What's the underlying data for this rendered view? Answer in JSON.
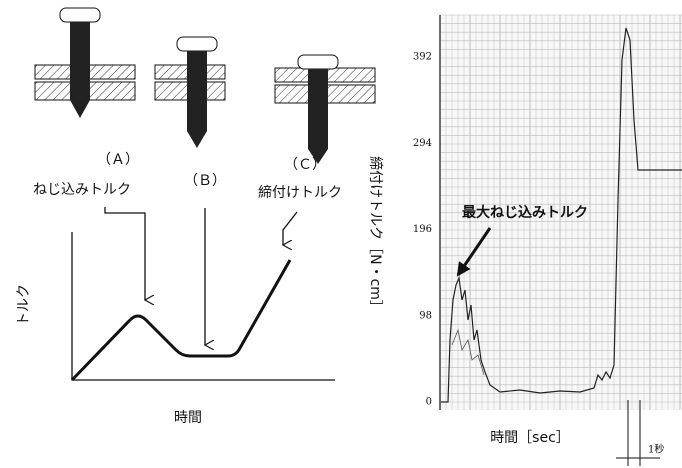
{
  "left_diagram": {
    "label_a": "（Ａ）",
    "text_a": "ねじ込みトルク",
    "label_b": "（Ｂ）",
    "label_c": "（Ｃ）",
    "text_c": "締付けトルク",
    "y_axis_label": "トルク",
    "x_axis_label": "時間"
  },
  "right_chart": {
    "y_axis_label": "締付けトルク［N・cm］",
    "x_axis_label": "時間［sec］",
    "annotation": "最大ねじ込みトルク",
    "scale_note": "1秒",
    "yticks": [
      0,
      98,
      196,
      294,
      392
    ]
  }
}
